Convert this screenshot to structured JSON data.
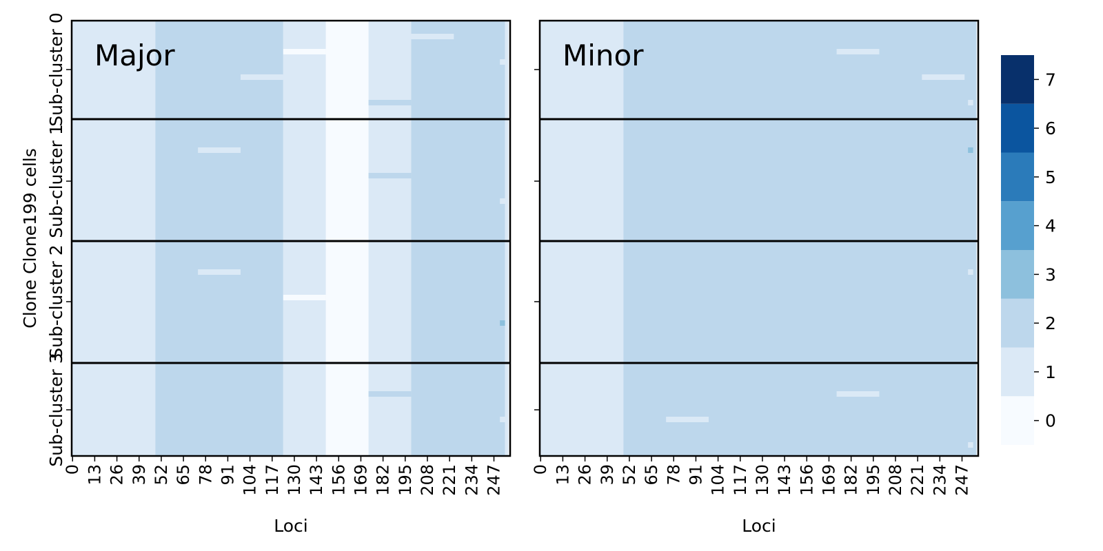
{
  "figure": {
    "ylabel": "Clone Clone199 cells",
    "xlabel": "Loci",
    "ytick_labels": [
      "Sub-cluster 0",
      "Sub-cluster 1",
      "Sub-cluster 2",
      "Sub-cluster 3"
    ]
  },
  "chart_data": [
    {
      "type": "heatmap",
      "panel_title": "Major",
      "n_loci": 257,
      "xticks": [
        0,
        13,
        26,
        39,
        52,
        65,
        78,
        91,
        104,
        117,
        130,
        143,
        156,
        169,
        182,
        195,
        208,
        221,
        234,
        247
      ],
      "xlabel": "Loci",
      "ylabel": "Clone Clone199 cells",
      "rows": [
        "Sub-cluster 0",
        "Sub-cluster 1",
        "Sub-cluster 2",
        "Sub-cluster 3"
      ],
      "baseline_segments": [
        {
          "loci": [
            0,
            49
          ],
          "value": 1
        },
        {
          "loci": [
            49,
            124
          ],
          "value": 2
        },
        {
          "loci": [
            124,
            149
          ],
          "value": 1
        },
        {
          "loci": [
            149,
            174
          ],
          "value": 0
        },
        {
          "loci": [
            174,
            199
          ],
          "value": 1
        },
        {
          "loci": [
            199,
            254
          ],
          "value": 2
        },
        {
          "loci": [
            254,
            256
          ],
          "value": 1
        }
      ],
      "cell_variations": [
        {
          "row": "Sub-cluster 0",
          "loci": [
            124,
            149
          ],
          "value": 0
        },
        {
          "row": "Sub-cluster 0",
          "loci": [
            99,
            124
          ],
          "value": 1
        },
        {
          "row": "Sub-cluster 0",
          "loci": [
            174,
            199
          ],
          "value": 2
        },
        {
          "row": "Sub-cluster 0",
          "loci": [
            199,
            224
          ],
          "value": 1
        },
        {
          "row": "Sub-cluster 0",
          "loci": [
            251,
            254
          ],
          "value": 1
        },
        {
          "row": "Sub-cluster 1",
          "loci": [
            74,
            99
          ],
          "value": 1
        },
        {
          "row": "Sub-cluster 1",
          "loci": [
            174,
            199
          ],
          "value": 2
        },
        {
          "row": "Sub-cluster 1",
          "loci": [
            251,
            254
          ],
          "value": 1
        },
        {
          "row": "Sub-cluster 2",
          "loci": [
            74,
            99
          ],
          "value": 1
        },
        {
          "row": "Sub-cluster 2",
          "loci": [
            124,
            149
          ],
          "value": 0
        },
        {
          "row": "Sub-cluster 2",
          "loci": [
            251,
            254
          ],
          "value": 3
        },
        {
          "row": "Sub-cluster 3",
          "loci": [
            174,
            199
          ],
          "value": 2
        },
        {
          "row": "Sub-cluster 3",
          "loci": [
            251,
            254
          ],
          "value": 1
        }
      ]
    },
    {
      "type": "heatmap",
      "panel_title": "Minor",
      "n_loci": 257,
      "xticks": [
        0,
        13,
        26,
        39,
        52,
        65,
        78,
        91,
        104,
        117,
        130,
        143,
        156,
        169,
        182,
        195,
        208,
        221,
        234,
        247
      ],
      "xlabel": "Loci",
      "rows": [
        "Sub-cluster 0",
        "Sub-cluster 1",
        "Sub-cluster 2",
        "Sub-cluster 3"
      ],
      "baseline_segments": [
        {
          "loci": [
            0,
            49
          ],
          "value": 1
        },
        {
          "loci": [
            49,
            256
          ],
          "value": 2
        }
      ],
      "cell_variations": [
        {
          "row": "Sub-cluster 0",
          "loci": [
            174,
            199
          ],
          "value": 1
        },
        {
          "row": "Sub-cluster 0",
          "loci": [
            224,
            249
          ],
          "value": 1
        },
        {
          "row": "Sub-cluster 0",
          "loci": [
            251,
            254
          ],
          "value": 1
        },
        {
          "row": "Sub-cluster 1",
          "loci": [
            251,
            254
          ],
          "value": 3
        },
        {
          "row": "Sub-cluster 2",
          "loci": [
            251,
            254
          ],
          "value": 1
        },
        {
          "row": "Sub-cluster 3",
          "loci": [
            174,
            199
          ],
          "value": 1
        },
        {
          "row": "Sub-cluster 3",
          "loci": [
            74,
            99
          ],
          "value": 1
        },
        {
          "row": "Sub-cluster 3",
          "loci": [
            251,
            254
          ],
          "value": 1
        }
      ]
    }
  ],
  "colorbar": {
    "ticks": [
      0,
      1,
      2,
      3,
      4,
      5,
      6,
      7
    ],
    "colors": [
      "#f7fbff",
      "#dbe9f6",
      "#bdd7ec",
      "#8dc0dd",
      "#57a0cf",
      "#2b7bba",
      "#0b559f",
      "#08306b"
    ]
  }
}
